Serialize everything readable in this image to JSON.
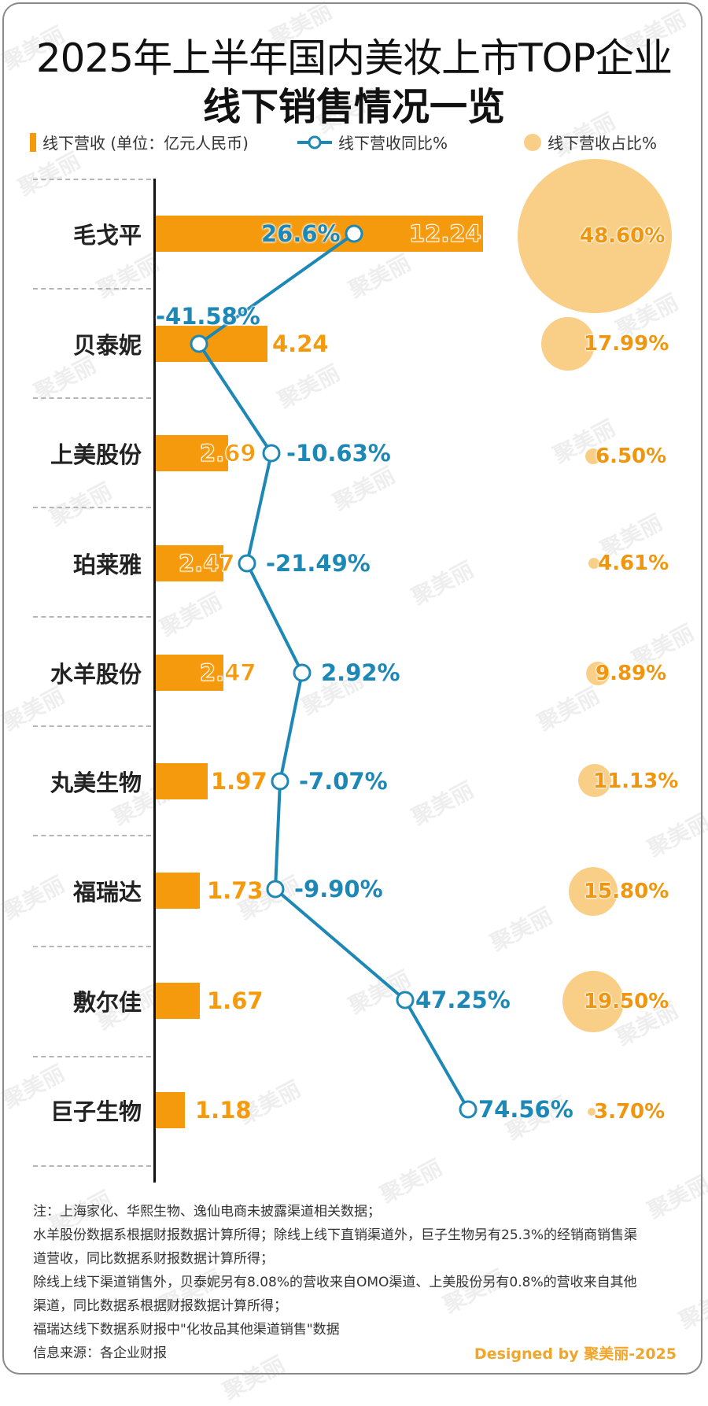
{
  "title": {
    "line1": "2025年上半年国内美妆上市TOP企业",
    "line2": "线下销售情况一览"
  },
  "legend": {
    "revenue": "线下营收 (单位：亿元人民币)",
    "yoy": "线下营收同比%",
    "share": "线下营收占比%"
  },
  "colors": {
    "bar": "#f59a0d",
    "line": "#1d88b5",
    "bubble": "#f9cf87",
    "share_text": "#f0960e"
  },
  "rows": [
    {
      "company": "毛戈平",
      "revenue": "12.24",
      "yoy": "26.6%",
      "share": "48.60%"
    },
    {
      "company": "贝泰妮",
      "revenue": "4.24",
      "yoy": "-41.58%",
      "share": "17.99%"
    },
    {
      "company": "上美股份",
      "revenue": "2.69",
      "yoy": "-10.63%",
      "share": "6.50%"
    },
    {
      "company": "珀莱雅",
      "revenue": "2.47",
      "yoy": "-21.49%",
      "share": "4.61%"
    },
    {
      "company": "水羊股份",
      "revenue": "2.47",
      "yoy": "2.92%",
      "share": "9.89%"
    },
    {
      "company": "丸美生物",
      "revenue": "1.97",
      "yoy": "-7.07%",
      "share": "11.13%"
    },
    {
      "company": "福瑞达",
      "revenue": "1.73",
      "yoy": "-9.90%",
      "share": "15.80%"
    },
    {
      "company": "敷尔佳",
      "revenue": "1.67",
      "yoy": "47.25%",
      "share": "19.50%"
    },
    {
      "company": "巨子生物",
      "revenue": "1.18",
      "yoy": "74.56%",
      "share": "3.70%"
    }
  ],
  "notes": [
    "注：上海家化、华熙生物、逸仙电商未披露渠道相关数据；",
    "水羊股份数据系根据财报数据计算所得；除线上线下直销渠道外，巨子生物另有25.3%的经销商销售渠",
    "道营收，同比数据系财报数据计算所得；",
    "除线上线下渠道销售外，贝泰妮另有8.08%的营收来自OMO渠道、上美股份另有0.8%的营收来自其他",
    "渠道，同比数据系根据财报数据计算所得；",
    "福瑞达线下数据系财报中\"化妆品其他渠道销售\"数据",
    "信息来源：各企业财报"
  ],
  "credit": "Designed by 聚美丽-2025",
  "watermark": "聚美丽",
  "chart_data": {
    "type": "bar",
    "title": "2025年上半年国内美妆上市TOP企业线下销售情况一览",
    "orientation": "horizontal",
    "categories": [
      "毛戈平",
      "贝泰妮",
      "上美股份",
      "珀莱雅",
      "水羊股份",
      "丸美生物",
      "福瑞达",
      "敷尔佳",
      "巨子生物"
    ],
    "series": [
      {
        "name": "线下营收 (单位：亿元人民币)",
        "type": "bar",
        "values": [
          12.24,
          4.24,
          2.69,
          2.47,
          2.47,
          1.97,
          1.73,
          1.67,
          1.18
        ]
      },
      {
        "name": "线下营收同比%",
        "type": "line",
        "values": [
          26.6,
          -41.58,
          -10.63,
          -21.49,
          2.92,
          -7.07,
          -9.9,
          47.25,
          74.56
        ]
      },
      {
        "name": "线下营收占比%",
        "type": "bubble",
        "values": [
          48.6,
          17.99,
          6.5,
          4.61,
          9.89,
          11.13,
          15.8,
          19.5,
          3.7
        ]
      }
    ],
    "xlabel": "",
    "ylabel": "",
    "legend_position": "top",
    "grid": false
  }
}
